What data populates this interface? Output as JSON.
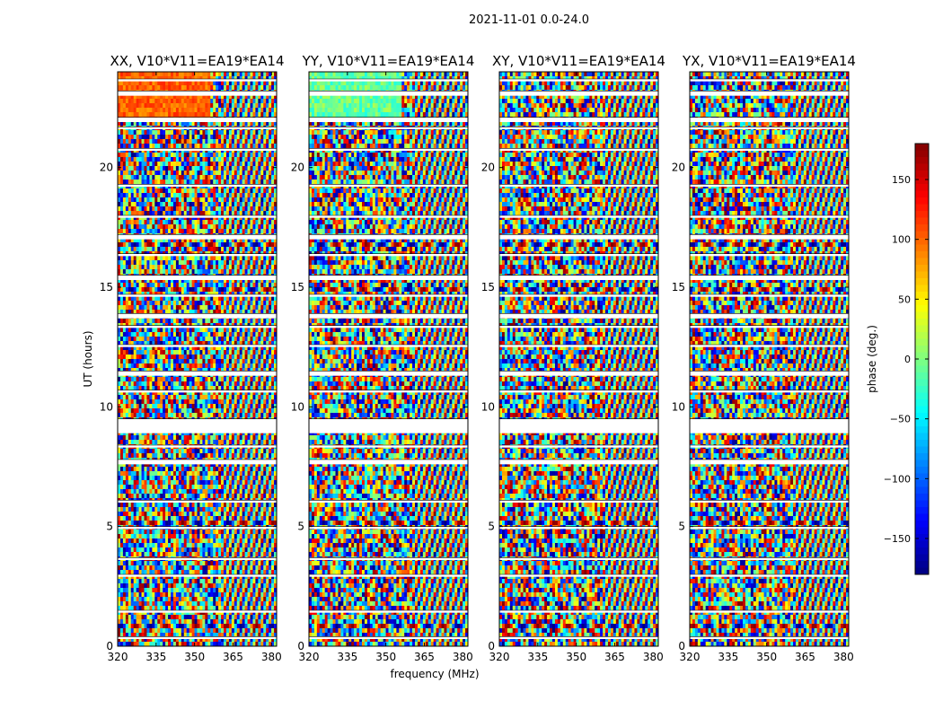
{
  "figure": {
    "suptitle": "2021-11-01 0.0-24.0"
  },
  "chart_data": {
    "type": "heatmap",
    "panels": [
      {
        "title": "XX, V10*V11=EA19*EA14",
        "variant": 0
      },
      {
        "title": "YY, V10*V11=EA19*EA14",
        "variant": 1
      },
      {
        "title": "XY, V10*V11=EA19*EA14",
        "variant": 2
      },
      {
        "title": "YX, V10*V11=EA19*EA14",
        "variant": 3
      }
    ],
    "xlabel": "frequency (MHz)",
    "ylabel": "UT (hours)",
    "xlim": [
      320,
      382
    ],
    "ylim": [
      0,
      24
    ],
    "xticks": [
      320,
      335,
      350,
      365,
      380
    ],
    "yticks": [
      0,
      5,
      10,
      15,
      20
    ],
    "colorbar": {
      "label": "phase (deg.)",
      "range": [
        -180,
        180
      ],
      "ticks": [
        150,
        100,
        50,
        0,
        -50,
        -100,
        -150
      ],
      "ticklabels": [
        "150",
        "100",
        "50",
        "0",
        "−50",
        "−100",
        "−150"
      ],
      "colormap": "jet"
    },
    "gap_bands_hours": [
      [
        0.3,
        0.4
      ],
      [
        1.4,
        1.5
      ],
      [
        2.9,
        3.0
      ],
      [
        3.6,
        3.7
      ],
      [
        4.9,
        5.0
      ],
      [
        6.0,
        6.1
      ],
      [
        7.6,
        7.8
      ],
      [
        8.3,
        8.4
      ],
      [
        8.9,
        9.5
      ],
      [
        10.6,
        10.7
      ],
      [
        11.3,
        11.5
      ],
      [
        12.5,
        12.6
      ],
      [
        13.3,
        13.4
      ],
      [
        13.7,
        13.9
      ],
      [
        14.6,
        14.7
      ],
      [
        15.3,
        15.5
      ],
      [
        16.3,
        16.4
      ],
      [
        17.0,
        17.2
      ],
      [
        17.9,
        18.0
      ],
      [
        19.2,
        19.3
      ],
      [
        20.7,
        20.8
      ],
      [
        21.6,
        21.7
      ],
      [
        21.9,
        22.1
      ],
      [
        23.0,
        23.2
      ],
      [
        23.6,
        23.7
      ]
    ],
    "ridge_rows_hours": [
      5.2,
      0.9,
      14.9,
      16.8
    ]
  }
}
